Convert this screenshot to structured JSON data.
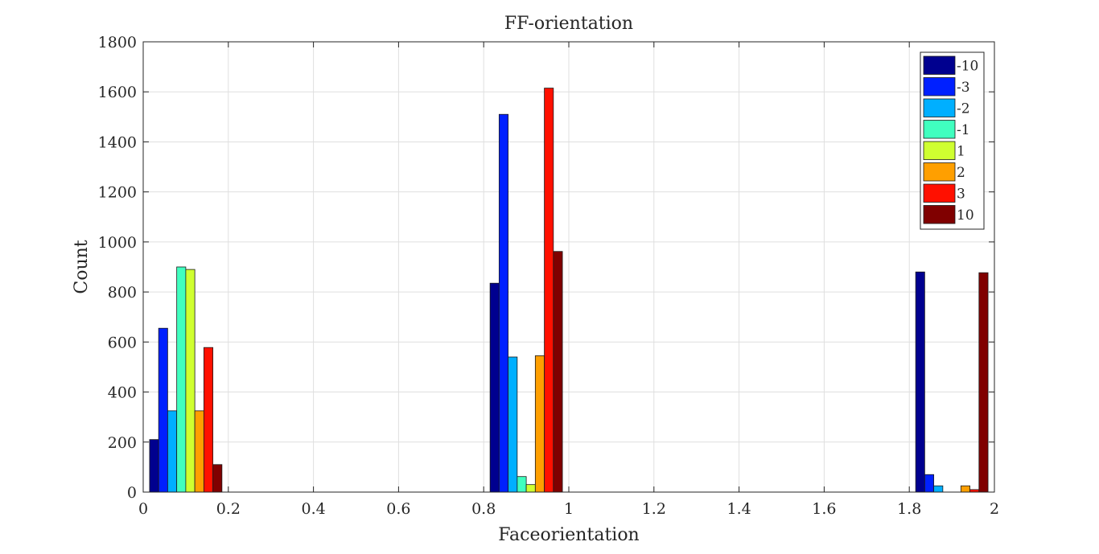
{
  "chart_data": {
    "type": "bar",
    "title": "FF-orientation",
    "xlabel": "Faceorientation",
    "ylabel": "Count",
    "xlim": [
      0,
      2
    ],
    "ylim": [
      0,
      1800
    ],
    "xticks": [
      0,
      0.2,
      0.4,
      0.6,
      0.8,
      1,
      1.2,
      1.4,
      1.6,
      1.8,
      2
    ],
    "xtick_labels": [
      "0",
      "0.2",
      "0.4",
      "0.6",
      "0.8",
      "1",
      "1.2",
      "1.4",
      "1.6",
      "1.8",
      "2"
    ],
    "yticks": [
      0,
      200,
      400,
      600,
      800,
      1000,
      1200,
      1400,
      1600,
      1800
    ],
    "ytick_labels": [
      "0",
      "200",
      "400",
      "600",
      "800",
      "1000",
      "1200",
      "1400",
      "1600",
      "1800"
    ],
    "grid": true,
    "legend_position": "top-right",
    "bin_centers": [
      0.1,
      0.3,
      0.5,
      0.7,
      0.9,
      1.1,
      1.3,
      1.5,
      1.7,
      1.9
    ],
    "bin_width": 0.2,
    "series": [
      {
        "name": "-10",
        "color": "#00008f",
        "values": [
          210,
          0,
          0,
          0,
          835,
          0,
          0,
          0,
          0,
          880
        ]
      },
      {
        "name": "-3",
        "color": "#0020ff",
        "values": [
          655,
          0,
          0,
          0,
          1510,
          0,
          0,
          0,
          0,
          70
        ]
      },
      {
        "name": "-2",
        "color": "#00afff",
        "values": [
          325,
          0,
          0,
          0,
          540,
          0,
          0,
          0,
          0,
          25
        ]
      },
      {
        "name": "-1",
        "color": "#40ffbf",
        "values": [
          900,
          0,
          0,
          0,
          62,
          0,
          0,
          0,
          0,
          0
        ]
      },
      {
        "name": "1",
        "color": "#cfff30",
        "values": [
          890,
          0,
          0,
          0,
          30,
          0,
          0,
          0,
          0,
          0
        ]
      },
      {
        "name": "2",
        "color": "#ff9f00",
        "values": [
          325,
          0,
          0,
          0,
          545,
          0,
          0,
          0,
          0,
          25
        ]
      },
      {
        "name": "3",
        "color": "#ff1000",
        "values": [
          578,
          0,
          0,
          0,
          1615,
          0,
          0,
          0,
          0,
          10
        ]
      },
      {
        "name": "10",
        "color": "#800000",
        "values": [
          110,
          0,
          0,
          0,
          962,
          0,
          0,
          0,
          0,
          877
        ]
      }
    ]
  }
}
